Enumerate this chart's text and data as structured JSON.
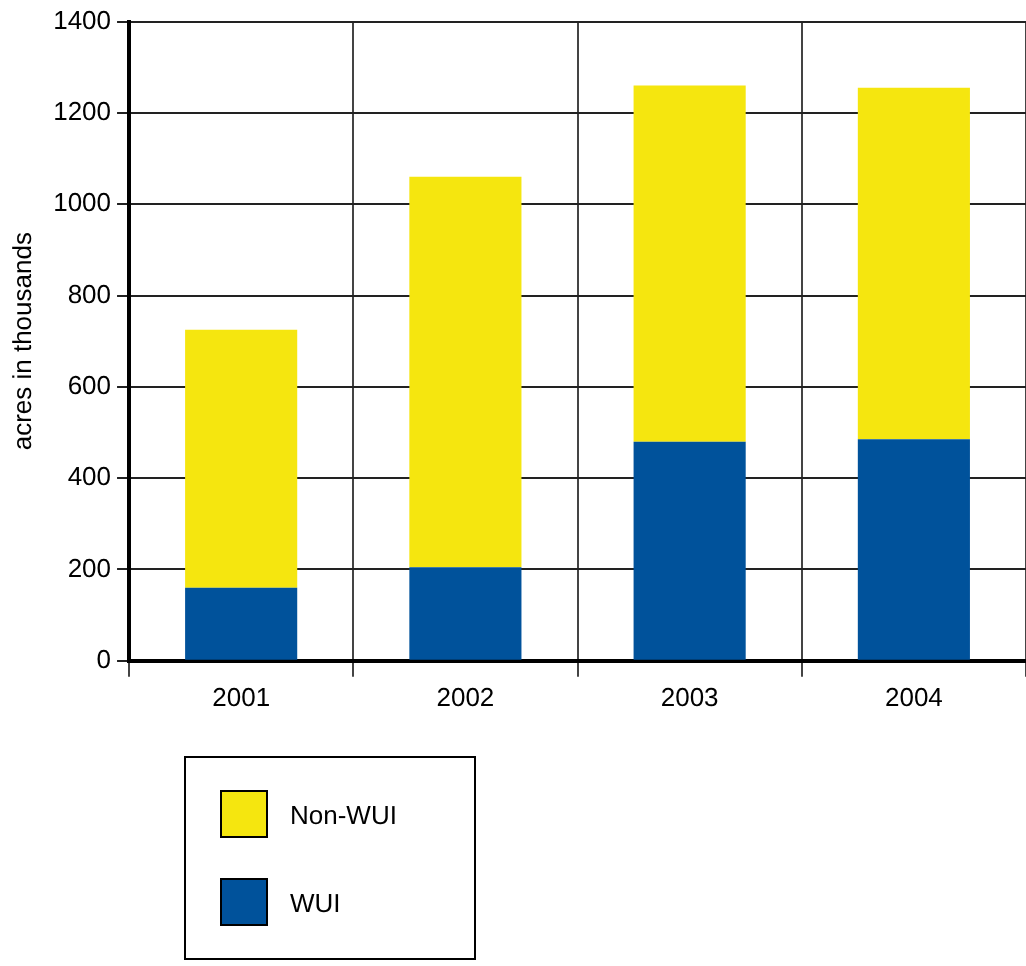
{
  "chart_data": {
    "type": "bar",
    "stacked": true,
    "ylabel": "acres in thousands",
    "categories": [
      "2001",
      "2002",
      "2003",
      "2004"
    ],
    "series": [
      {
        "name": "WUI",
        "color": "#00529b",
        "values": [
          160,
          205,
          480,
          485
        ]
      },
      {
        "name": "Non-WUI",
        "color": "#f5e60f",
        "values": [
          565,
          855,
          780,
          770
        ]
      }
    ],
    "ylim": [
      0,
      1400
    ],
    "yticks": [
      0,
      200,
      400,
      600,
      800,
      1000,
      1200,
      1400
    ],
    "grid": true,
    "legend": "bottom left"
  }
}
